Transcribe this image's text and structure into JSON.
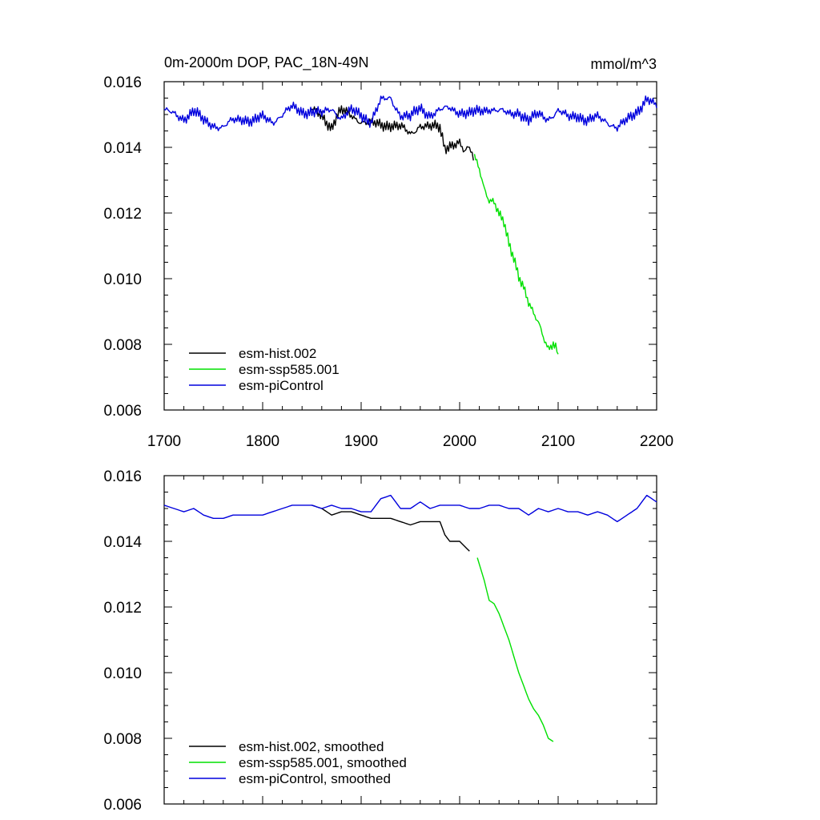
{
  "chart_data": [
    {
      "type": "line",
      "title": "0m-2000m DOP, PAC_18N-49N",
      "units": "mmol/m^3",
      "xlim": [
        1700,
        2200
      ],
      "ylim": [
        0.006,
        0.016
      ],
      "xticks": [
        "1700",
        "1800",
        "1900",
        "2000",
        "2100",
        "2200"
      ],
      "yticks": [
        "0.006",
        "0.008",
        "0.010",
        "0.012",
        "0.014",
        "0.016"
      ],
      "legend_position": "bottom-left",
      "series": [
        {
          "name": "esm-hist.002",
          "color": "#000000",
          "x": [
            1850,
            1860,
            1870,
            1875,
            1880,
            1890,
            1900,
            1910,
            1920,
            1930,
            1940,
            1950,
            1960,
            1970,
            1980,
            1985,
            1990,
            2000,
            2005,
            2010,
            2014
          ],
          "y": [
            0.0151,
            0.015,
            0.0146,
            0.0149,
            0.0151,
            0.015,
            0.0148,
            0.0147,
            0.0147,
            0.0147,
            0.0146,
            0.0144,
            0.0147,
            0.0146,
            0.0146,
            0.014,
            0.0141,
            0.0141,
            0.0138,
            0.014,
            0.0136
          ]
        },
        {
          "name": "esm-ssp585.001",
          "color": "#00e000",
          "x": [
            2015,
            2020,
            2025,
            2030,
            2035,
            2040,
            2045,
            2050,
            2055,
            2060,
            2065,
            2070,
            2075,
            2080,
            2085,
            2090,
            2095,
            2100
          ],
          "y": [
            0.0137,
            0.0134,
            0.0128,
            0.0124,
            0.0123,
            0.0119,
            0.0117,
            0.0111,
            0.0107,
            0.0101,
            0.0097,
            0.0092,
            0.0089,
            0.0087,
            0.0083,
            0.0079,
            0.008,
            0.0077
          ]
        },
        {
          "name": "esm-piControl",
          "color": "#0000dd",
          "x": [
            1700,
            1710,
            1720,
            1730,
            1740,
            1750,
            1760,
            1770,
            1780,
            1790,
            1800,
            1810,
            1820,
            1830,
            1840,
            1850,
            1860,
            1870,
            1880,
            1890,
            1900,
            1910,
            1920,
            1930,
            1940,
            1950,
            1960,
            1970,
            1980,
            1990,
            2000,
            2010,
            2020,
            2030,
            2040,
            2050,
            2060,
            2070,
            2080,
            2090,
            2100,
            2110,
            2120,
            2130,
            2140,
            2150,
            2160,
            2170,
            2180,
            2190,
            2200
          ],
          "y": [
            0.0151,
            0.015,
            0.0149,
            0.0151,
            0.0148,
            0.0147,
            0.0146,
            0.0148,
            0.0149,
            0.0148,
            0.0149,
            0.0148,
            0.015,
            0.0152,
            0.0151,
            0.0151,
            0.015,
            0.0152,
            0.0149,
            0.0151,
            0.015,
            0.0148,
            0.0154,
            0.0155,
            0.015,
            0.0149,
            0.0152,
            0.015,
            0.0151,
            0.0152,
            0.0151,
            0.015,
            0.0151,
            0.0152,
            0.0151,
            0.015,
            0.0151,
            0.0148,
            0.015,
            0.0149,
            0.0151,
            0.0149,
            0.015,
            0.0148,
            0.0149,
            0.0148,
            0.0146,
            0.0148,
            0.0151,
            0.0155,
            0.0152
          ]
        }
      ]
    },
    {
      "type": "line",
      "xlim": [
        1700,
        2200
      ],
      "ylim": [
        0.006,
        0.016
      ],
      "yticks": [
        "0.006",
        "0.008",
        "0.010",
        "0.012",
        "0.014",
        "0.016"
      ],
      "legend_position": "bottom-left",
      "series": [
        {
          "name": "esm-hist.002, smoothed",
          "color": "#000000",
          "x": [
            1850,
            1860,
            1870,
            1880,
            1890,
            1900,
            1910,
            1920,
            1930,
            1940,
            1950,
            1960,
            1970,
            1980,
            1985,
            1990,
            2000,
            2010
          ],
          "y": [
            0.0151,
            0.015,
            0.0148,
            0.0149,
            0.0149,
            0.0148,
            0.0147,
            0.0147,
            0.0147,
            0.0146,
            0.0145,
            0.0146,
            0.0146,
            0.0146,
            0.0142,
            0.014,
            0.014,
            0.0137
          ]
        },
        {
          "name": "esm-ssp585.001, smoothed",
          "color": "#00e000",
          "x": [
            2018,
            2025,
            2030,
            2035,
            2040,
            2045,
            2050,
            2055,
            2060,
            2065,
            2070,
            2075,
            2080,
            2085,
            2090,
            2095
          ],
          "y": [
            0.0135,
            0.0128,
            0.0122,
            0.0121,
            0.0118,
            0.0114,
            0.011,
            0.0105,
            0.01,
            0.0096,
            0.0092,
            0.0089,
            0.0087,
            0.0084,
            0.008,
            0.0079
          ]
        },
        {
          "name": "esm-piControl, smoothed",
          "color": "#0000dd",
          "x": [
            1700,
            1710,
            1720,
            1730,
            1740,
            1750,
            1760,
            1770,
            1780,
            1790,
            1800,
            1810,
            1820,
            1830,
            1840,
            1850,
            1860,
            1870,
            1880,
            1890,
            1900,
            1910,
            1920,
            1930,
            1940,
            1950,
            1960,
            1970,
            1980,
            1990,
            2000,
            2010,
            2020,
            2030,
            2040,
            2050,
            2060,
            2070,
            2080,
            2090,
            2100,
            2110,
            2120,
            2130,
            2140,
            2150,
            2160,
            2170,
            2180,
            2190,
            2200
          ],
          "y": [
            0.0151,
            0.015,
            0.0149,
            0.015,
            0.0148,
            0.0147,
            0.0147,
            0.0148,
            0.0148,
            0.0148,
            0.0148,
            0.0149,
            0.015,
            0.0151,
            0.0151,
            0.0151,
            0.015,
            0.0151,
            0.015,
            0.015,
            0.0149,
            0.0149,
            0.0153,
            0.0154,
            0.015,
            0.015,
            0.0152,
            0.015,
            0.0151,
            0.0151,
            0.0151,
            0.015,
            0.015,
            0.0151,
            0.0151,
            0.015,
            0.015,
            0.0148,
            0.015,
            0.0149,
            0.015,
            0.0149,
            0.0149,
            0.0148,
            0.0149,
            0.0148,
            0.0146,
            0.0148,
            0.015,
            0.0154,
            0.0152
          ]
        }
      ]
    }
  ]
}
